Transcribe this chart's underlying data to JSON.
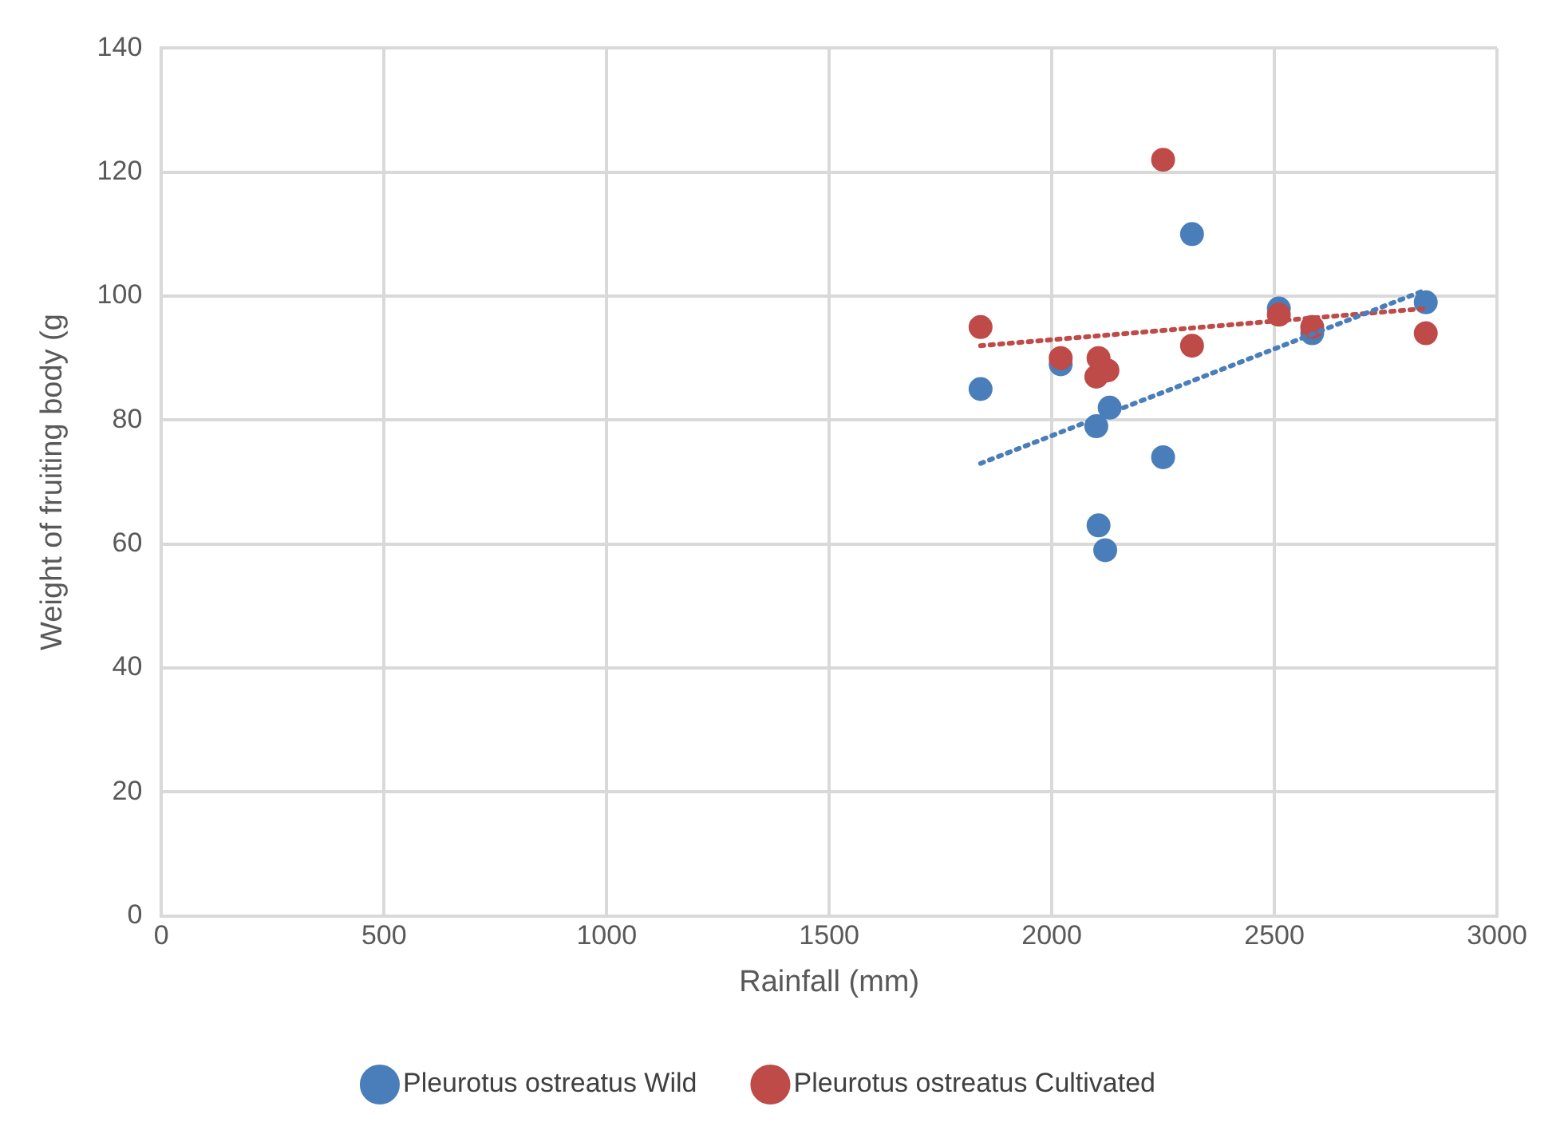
{
  "chart_data": {
    "type": "scatter",
    "xlabel": "Rainfall (mm)",
    "ylabel": "Weight of fruiting body (g",
    "xlim": [
      0,
      3000
    ],
    "xticks": [
      0,
      500,
      1000,
      1500,
      2000,
      2500,
      3000
    ],
    "ylim": [
      0,
      140
    ],
    "yticks": [
      0,
      20,
      40,
      60,
      80,
      100,
      120,
      140
    ],
    "grid": true,
    "legend": "bottom",
    "marker": "circle",
    "series": [
      {
        "name": "Pleurotus ostreatus Wild",
        "color": "#4a7ebb",
        "x": [
          1840,
          2020,
          2100,
          2130,
          2105,
          2120,
          2250,
          2315,
          2510,
          2585,
          2840
        ],
        "values": [
          85,
          89,
          79,
          82,
          63,
          59,
          74,
          110,
          98,
          94,
          99
        ]
      },
      {
        "name": "Pleurotus ostreatus Cultivated",
        "color": "#be4b48",
        "x": [
          1840,
          2020,
          2100,
          2105,
          2125,
          2250,
          2315,
          2510,
          2585,
          2840
        ],
        "values": [
          95,
          90,
          87,
          90,
          88,
          122,
          92,
          97,
          95,
          94
        ]
      },
      {
        "type": "line",
        "color": "#4a7ebb",
        "line_style": "dotted",
        "marker": "none",
        "x": [
          1840,
          2840
        ],
        "values": [
          73,
          101
        ]
      },
      {
        "type": "line",
        "color": "#be4b48",
        "line_style": "dotted",
        "marker": "none",
        "x": [
          1840,
          2840
        ],
        "values": [
          92,
          98
        ]
      }
    ]
  }
}
